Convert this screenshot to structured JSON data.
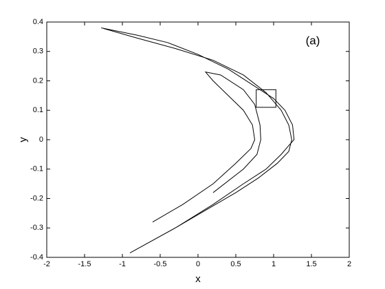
{
  "chart_data": {
    "type": "line",
    "xlabel": "x",
    "ylabel": "y",
    "annotation": "(a)",
    "xlim": [
      -2,
      2
    ],
    "ylim": [
      -0.4,
      0.4
    ],
    "xticks": [
      -2,
      -1.5,
      -1,
      -0.5,
      0,
      0.5,
      1,
      1.5,
      2
    ],
    "yticks": [
      -0.4,
      -0.3,
      -0.2,
      -0.1,
      0,
      0.1,
      0.2,
      0.3,
      0.4
    ],
    "zoom_box": {
      "xlim": [
        0.77,
        1.03
      ],
      "ylim": [
        0.11,
        0.17
      ]
    },
    "series": [
      {
        "color": "#000000",
        "x": [
          -0.9,
          -0.3,
          0.2,
          0.6,
          0.9,
          1.1,
          1.2,
          1.27,
          1.25,
          1.15,
          1.0,
          0.7,
          0.4,
          0.0,
          -0.4,
          -0.8,
          -1.28
        ],
        "y": [
          -0.385,
          -0.3,
          -0.22,
          -0.15,
          -0.1,
          -0.05,
          -0.02,
          0.0,
          0.05,
          0.1,
          0.14,
          0.19,
          0.24,
          0.29,
          0.33,
          0.355,
          0.38
        ]
      },
      {
        "color": "#000000",
        "x": [
          -1.25,
          -0.8,
          -0.3,
          0.2,
          0.6,
          0.9,
          1.1,
          1.2,
          1.24,
          1.2,
          1.05,
          0.8,
          0.5,
          0.1,
          -0.3
        ],
        "y": [
          0.378,
          0.345,
          0.31,
          0.27,
          0.22,
          0.16,
          0.1,
          0.05,
          0.0,
          -0.04,
          -0.08,
          -0.13,
          -0.18,
          -0.24,
          -0.3
        ]
      },
      {
        "color": "#000000",
        "x": [
          -0.6,
          -0.2,
          0.2,
          0.5,
          0.7,
          0.75,
          0.72,
          0.6,
          0.4,
          0.2,
          0.1,
          0.3,
          0.6,
          0.75,
          0.82,
          0.83,
          0.78,
          0.6,
          0.2
        ],
        "y": [
          -0.28,
          -0.22,
          -0.15,
          -0.08,
          -0.03,
          0.0,
          0.05,
          0.1,
          0.15,
          0.2,
          0.23,
          0.22,
          0.17,
          0.12,
          0.05,
          0.0,
          -0.05,
          -0.1,
          -0.18
        ]
      }
    ]
  }
}
